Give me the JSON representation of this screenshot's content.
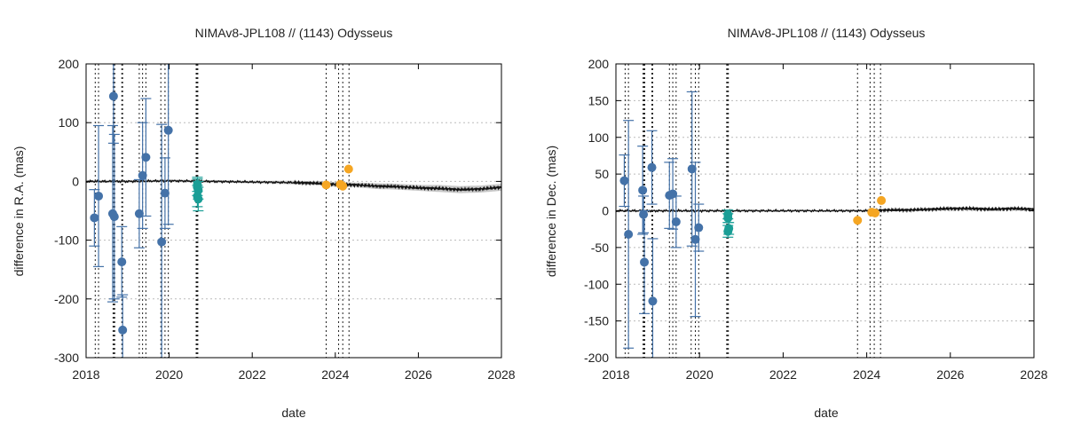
{
  "chart_data": [
    {
      "type": "scatter",
      "title": "NIMAv8-JPL108 // (1143) Odysseus",
      "xlabel": "date",
      "ylabel": "difference in R.A. (mas)",
      "xlim": [
        2018,
        2028
      ],
      "ylim": [
        -300,
        200
      ],
      "xticks": [
        2018,
        2020,
        2022,
        2024,
        2026,
        2028
      ],
      "yticks": [
        -300,
        -200,
        -100,
        0,
        100,
        200
      ],
      "grid": "horizontal-dotted",
      "colors": {
        "blue": "#4472a8",
        "teal": "#1a9e96",
        "orange": "#f5a623",
        "line": "#111111",
        "band": "#c8c8c8"
      },
      "vlines": [
        2018.22,
        2018.3,
        2018.65,
        2018.67,
        2018.69,
        2018.86,
        2018.88,
        2019.28,
        2019.36,
        2019.44,
        2019.8,
        2019.9,
        2019.98,
        2020.65,
        2020.67,
        2020.69,
        2023.78,
        2024.08,
        2024.18,
        2024.33
      ],
      "series": [
        {
          "name": "obs-blue",
          "color": "#4472a8",
          "points": [
            {
              "x": 2018.2,
              "y": -62,
              "e": 48
            },
            {
              "x": 2018.3,
              "y": -25,
              "e": 120
            },
            {
              "x": 2018.64,
              "y": -55,
              "e": 150
            },
            {
              "x": 2018.66,
              "y": 145,
              "e": 80
            },
            {
              "x": 2018.68,
              "y": -60,
              "e": 140
            },
            {
              "x": 2018.86,
              "y": -137,
              "e": 60
            },
            {
              "x": 2018.88,
              "y": -253,
              "e": 60
            },
            {
              "x": 2019.28,
              "y": -55,
              "e": 58
            },
            {
              "x": 2019.36,
              "y": 10,
              "e": 90
            },
            {
              "x": 2019.44,
              "y": 41,
              "e": 100
            },
            {
              "x": 2019.82,
              "y": -103,
              "e": 200
            },
            {
              "x": 2019.9,
              "y": -20,
              "e": 60
            },
            {
              "x": 2019.98,
              "y": 87,
              "e": 160
            }
          ]
        },
        {
          "name": "obs-teal",
          "color": "#1a9e96",
          "points": [
            {
              "x": 2020.68,
              "y": -5,
              "e": 12
            },
            {
              "x": 2020.68,
              "y": -10,
              "e": 14
            },
            {
              "x": 2020.7,
              "y": -15,
              "e": 15
            },
            {
              "x": 2020.68,
              "y": -25,
              "e": 18
            },
            {
              "x": 2020.7,
              "y": -30,
              "e": 20
            }
          ]
        },
        {
          "name": "obs-orange",
          "color": "#f5a623",
          "points": [
            {
              "x": 2023.78,
              "y": -6,
              "e": 0
            },
            {
              "x": 2024.12,
              "y": -5,
              "e": 0
            },
            {
              "x": 2024.18,
              "y": -8,
              "e": 0
            },
            {
              "x": 2024.32,
              "y": 21,
              "e": 0
            }
          ]
        }
      ],
      "curve": {
        "x": [
          2018,
          2019,
          2020,
          2021,
          2022,
          2023,
          2023.5,
          2024,
          2024.5,
          2025,
          2025.5,
          2026,
          2026.5,
          2027,
          2027.5,
          2028
        ],
        "y": [
          0,
          0,
          1,
          0,
          -1,
          -2,
          -3,
          -5,
          -6,
          -8,
          -9,
          -11,
          -12,
          -14,
          -13,
          -10
        ],
        "band": [
          2,
          2,
          2,
          2,
          2,
          3,
          3,
          4,
          4,
          5,
          5,
          5,
          6,
          6,
          6,
          6
        ]
      }
    },
    {
      "type": "scatter",
      "title": "NIMAv8-JPL108 // (1143) Odysseus",
      "xlabel": "date",
      "ylabel": "difference in Dec. (mas)",
      "xlim": [
        2018,
        2028
      ],
      "ylim": [
        -200,
        200
      ],
      "xticks": [
        2018,
        2020,
        2022,
        2024,
        2026,
        2028
      ],
      "yticks": [
        -200,
        -150,
        -100,
        -50,
        0,
        50,
        100,
        150,
        200
      ],
      "grid": "horizontal-dotted",
      "colors": {
        "blue": "#4472a8",
        "teal": "#1a9e96",
        "orange": "#f5a623",
        "line": "#111111",
        "band": "#c8c8c8"
      },
      "vlines": [
        2018.22,
        2018.3,
        2018.65,
        2018.67,
        2018.69,
        2018.86,
        2018.88,
        2019.28,
        2019.36,
        2019.44,
        2019.8,
        2019.9,
        2019.98,
        2020.65,
        2020.67,
        2020.69,
        2023.78,
        2024.08,
        2024.18,
        2024.33
      ],
      "series": [
        {
          "name": "obs-blue",
          "color": "#4472a8",
          "points": [
            {
              "x": 2018.2,
              "y": 41,
              "e": 35
            },
            {
              "x": 2018.3,
              "y": -32,
              "e": 155
            },
            {
              "x": 2018.64,
              "y": 28,
              "e": 60
            },
            {
              "x": 2018.66,
              "y": -5,
              "e": 25
            },
            {
              "x": 2018.68,
              "y": -70,
              "e": 70
            },
            {
              "x": 2018.86,
              "y": 59,
              "e": 50
            },
            {
              "x": 2018.88,
              "y": -123,
              "e": 85
            },
            {
              "x": 2019.28,
              "y": 21,
              "e": 45
            },
            {
              "x": 2019.36,
              "y": 23,
              "e": 48
            },
            {
              "x": 2019.44,
              "y": -15,
              "e": 35
            },
            {
              "x": 2019.82,
              "y": 57,
              "e": 105
            },
            {
              "x": 2019.9,
              "y": -39,
              "e": 105
            },
            {
              "x": 2019.98,
              "y": -23,
              "e": 32
            }
          ]
        },
        {
          "name": "obs-teal",
          "color": "#1a9e96",
          "points": [
            {
              "x": 2020.68,
              "y": -5,
              "e": 6
            },
            {
              "x": 2020.68,
              "y": -10,
              "e": 6
            },
            {
              "x": 2020.7,
              "y": -24,
              "e": 8
            },
            {
              "x": 2020.68,
              "y": -28,
              "e": 8
            }
          ]
        },
        {
          "name": "obs-orange",
          "color": "#f5a623",
          "points": [
            {
              "x": 2023.78,
              "y": -13,
              "e": 0
            },
            {
              "x": 2024.12,
              "y": -2,
              "e": 0
            },
            {
              "x": 2024.2,
              "y": -3,
              "e": 0
            },
            {
              "x": 2024.35,
              "y": 14,
              "e": 0
            }
          ]
        }
      ],
      "curve": {
        "x": [
          2018,
          2019,
          2020,
          2021,
          2022,
          2023,
          2024,
          2024.5,
          2025,
          2025.5,
          2026,
          2026.5,
          2027,
          2027.5,
          2028
        ],
        "y": [
          0,
          0,
          0,
          0,
          0,
          0,
          0,
          1,
          1,
          2,
          3,
          3,
          2,
          3,
          2
        ],
        "band": [
          1,
          1,
          1,
          1,
          1,
          1,
          1,
          1.5,
          1.5,
          1.5,
          2,
          2,
          2,
          2,
          2
        ]
      }
    }
  ]
}
